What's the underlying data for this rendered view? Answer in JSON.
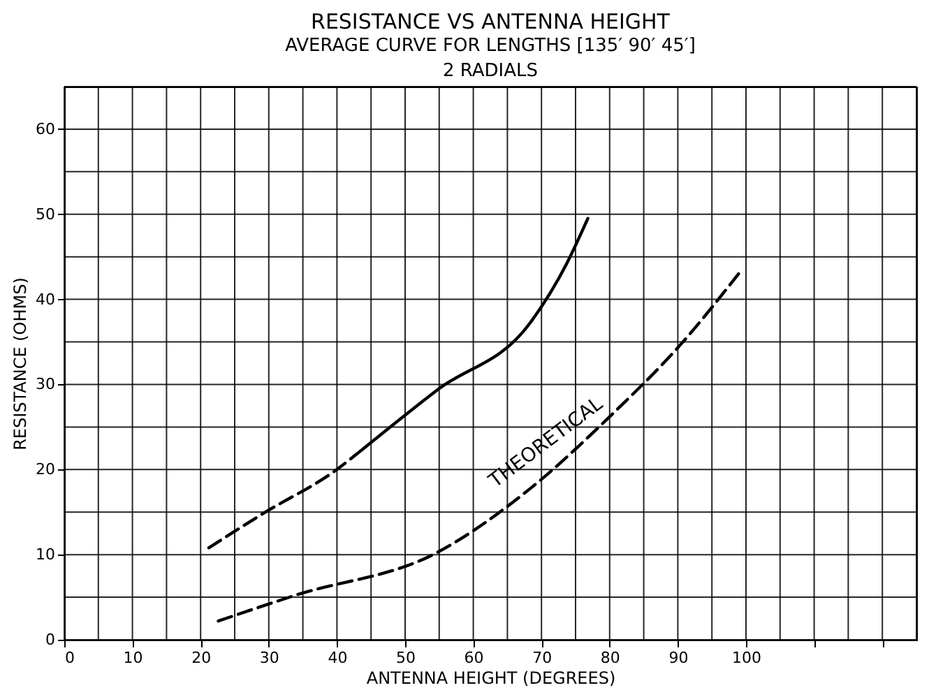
{
  "chart_data": {
    "type": "line",
    "title": "RESISTANCE VS ANTENNA HEIGHT",
    "subtitle": "AVERAGE CURVE FOR LENGTHS [135′ 90′ 45′]\n2 RADIALS",
    "xlabel": "ANTENNA HEIGHT (DEGREES)",
    "ylabel": "RESISTANCE (OHMS)",
    "series": [
      {
        "color": "#000000",
        "line_style": "dashed",
        "x": [
          21.2,
          29.3,
          39.8,
          43.8
        ],
        "values": [
          10.8,
          14.9,
          19.9,
          22.4
        ]
      },
      {
        "color": "#000000",
        "line_style": "solid",
        "x": [
          43.8,
          54.8,
          68.4,
          73.7,
          76.8
        ],
        "values": [
          22.4,
          29.4,
          37.3,
          44.2,
          49.5
        ]
      },
      {
        "color": "#000000",
        "line_style": "dashed",
        "x": [
          22.6,
          33.8,
          54.8,
          68.4,
          80.5,
          90.2,
          99.4
        ],
        "values": [
          2.2,
          5.2,
          10.3,
          17.8,
          26.6,
          34.5,
          43.5
        ]
      }
    ],
    "annotations": [
      "THEORETICAL"
    ],
    "xlim": [
      0,
      125
    ],
    "xticks": [
      0,
      {
        "value": 5,
        "label": null
      },
      10,
      {
        "value": 15,
        "label": null
      },
      20,
      {
        "value": 25,
        "label": null
      },
      30,
      {
        "value": 35,
        "label": null
      },
      40,
      {
        "value": 45,
        "label": null
      },
      50,
      {
        "value": 55,
        "label": null
      },
      60,
      {
        "value": 65,
        "label": null
      },
      70,
      {
        "value": 75,
        "label": null
      },
      80,
      {
        "value": 85,
        "label": null
      },
      90,
      {
        "value": 95,
        "label": null
      },
      100,
      {
        "value": 105,
        "label": null
      },
      {
        "value": 110,
        "label": null
      },
      {
        "value": 115,
        "label": null
      },
      {
        "value": 120,
        "label": null
      },
      {
        "value": 125,
        "label": null
      }
    ],
    "ylim": [
      0,
      65
    ],
    "yticks": [
      0,
      {
        "value": 5,
        "label": null
      },
      10,
      {
        "value": 15,
        "label": null
      },
      20,
      {
        "value": 25,
        "label": null
      },
      30,
      {
        "value": 35,
        "label": null
      },
      40,
      {
        "value": 45,
        "label": null
      },
      50,
      {
        "value": 55,
        "label": null
      },
      60,
      {
        "value": 65,
        "label": null
      }
    ],
    "grid": true,
    "marker": "none"
  }
}
